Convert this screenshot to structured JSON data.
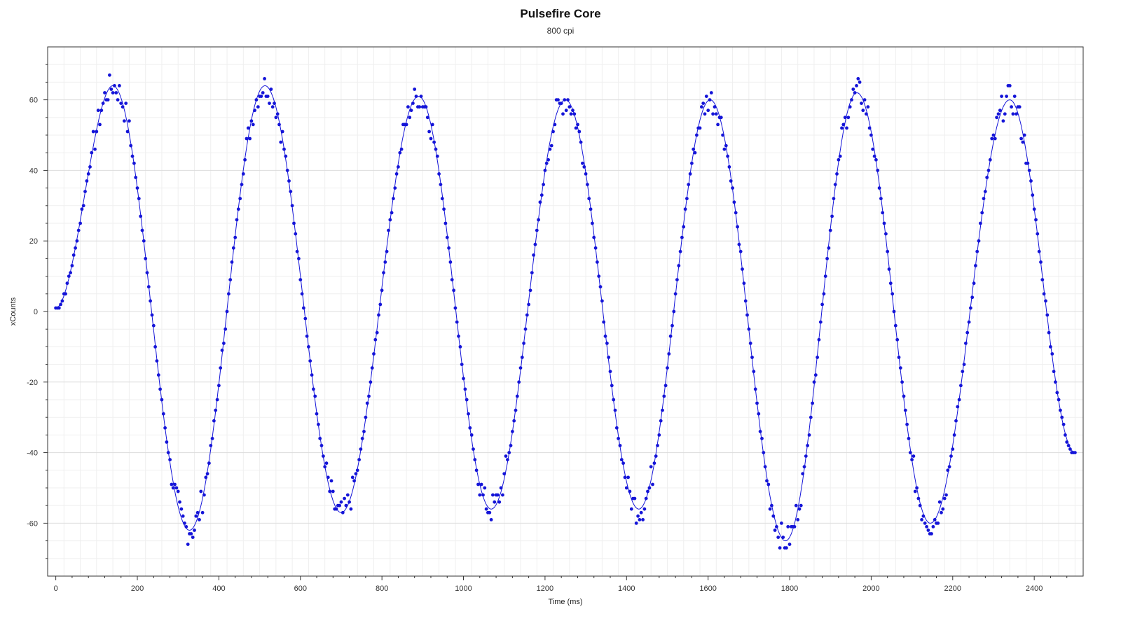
{
  "chart_data": {
    "type": "scatter",
    "title": "Pulsefire Core",
    "subtitle": "800 cpi",
    "xlabel": "Time (ms)",
    "ylabel": "xCounts",
    "xlim": [
      -20,
      2520
    ],
    "ylim": [
      -75,
      75
    ],
    "xticks": [
      0,
      200,
      400,
      600,
      800,
      1000,
      1200,
      1400,
      1600,
      1800,
      2000,
      2200,
      2400
    ],
    "yticks": [
      -60,
      -40,
      -20,
      0,
      20,
      40,
      60
    ],
    "grid": true,
    "legend": "none",
    "colors": {
      "points": "#1414d8",
      "fit_line": "#1414d8",
      "grid": "#e6e6e6",
      "axis": "#333333"
    },
    "series": [
      {
        "style": "points",
        "sample_interval_ms": 4,
        "x_start": 0,
        "x_end": 2500,
        "extrema": [
          {
            "x": 0,
            "y": 1
          },
          {
            "x": 140,
            "y": 64
          },
          {
            "x": 328,
            "y": -62
          },
          {
            "x": 513,
            "y": 64
          },
          {
            "x": 700,
            "y": -57
          },
          {
            "x": 890,
            "y": 61
          },
          {
            "x": 1068,
            "y": -56
          },
          {
            "x": 1250,
            "y": 60
          },
          {
            "x": 1430,
            "y": -56
          },
          {
            "x": 1605,
            "y": 60
          },
          {
            "x": 1790,
            "y": -65
          },
          {
            "x": 1965,
            "y": 62
          },
          {
            "x": 2145,
            "y": -60
          },
          {
            "x": 2340,
            "y": 60
          },
          {
            "x": 2500,
            "y": -40
          }
        ]
      },
      {
        "style": "line",
        "x_start": 0,
        "x_end": 2500,
        "extrema": [
          {
            "x": 0,
            "y": 1
          },
          {
            "x": 140,
            "y": 64
          },
          {
            "x": 328,
            "y": -62
          },
          {
            "x": 513,
            "y": 64
          },
          {
            "x": 700,
            "y": -57
          },
          {
            "x": 890,
            "y": 61
          },
          {
            "x": 1068,
            "y": -56
          },
          {
            "x": 1250,
            "y": 60
          },
          {
            "x": 1430,
            "y": -56
          },
          {
            "x": 1605,
            "y": 60
          },
          {
            "x": 1790,
            "y": -65
          },
          {
            "x": 1965,
            "y": 62
          },
          {
            "x": 2145,
            "y": -60
          },
          {
            "x": 2340,
            "y": 60
          },
          {
            "x": 2500,
            "y": -40
          }
        ]
      }
    ]
  }
}
